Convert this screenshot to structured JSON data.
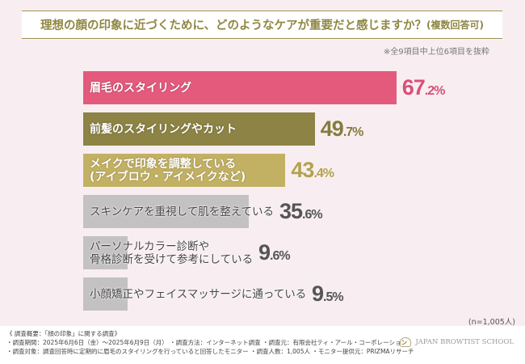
{
  "header": {
    "title": "理想の顔の印象に近づくために、どのようなケアが重要だと感じますか？",
    "title_suffix": "(複数回答可)",
    "note": "※全9項目中上位6項目を抜粋"
  },
  "chart_data": {
    "type": "bar",
    "orientation": "horizontal",
    "title": "理想の顔の印象に近づくために、どのようなケアが重要だと感じますか？(複数回答可)",
    "unit": "%",
    "categories": [
      "眉毛のスタイリング",
      "前髪のスタイリングやカット",
      "メイクで印象を調整している\n(アイブロウ・アイメイクなど)",
      "スキンケアを重視して肌を整えている",
      "パーソナルカラー診断や\n骨格診断を受けて参考にしている",
      "小顔矯正やフェイスマッサージに通っている"
    ],
    "values": [
      67.2,
      49.7,
      43.4,
      35.6,
      9.6,
      9.5
    ],
    "value_labels": [
      {
        "int": "67",
        "dec": ".2%"
      },
      {
        "int": "49",
        "dec": ".7%"
      },
      {
        "int": "43",
        "dec": ".4%"
      },
      {
        "int": "35",
        "dec": ".6%"
      },
      {
        "int": "9",
        "dec": ".6%"
      },
      {
        "int": "9",
        "dec": ".5%"
      }
    ],
    "colors": [
      "#e45a7d",
      "#8c8344",
      "#c3b163",
      "#c3c1c2",
      "#c3c1c2",
      "#c3c1c2"
    ],
    "value_colors": [
      "#d9507a",
      "#857c3d",
      "#b3a24f",
      "#555555",
      "#555555",
      "#555555"
    ],
    "grid": false,
    "legend": "none"
  },
  "sample_note": "(n=1,005人)",
  "footer": {
    "lines": [
      "《 調査概要：「顔の印象」に関する調査》",
      "・調査期間：2025年6月6日（金）〜2025年6月9日（月） ・調査方法：インターネット調査 ・調査元：有限会社ティ・アール・コーポレーション",
      "・調査対象：調査回答時に定期的に眉毛のスタイリングを行っていると回答したモニター ・調査人数：1,005人 ・モニター提供元：PRIZMAリサーチ"
    ],
    "logo": "JAPAN BROWTIST SCHOOL"
  }
}
